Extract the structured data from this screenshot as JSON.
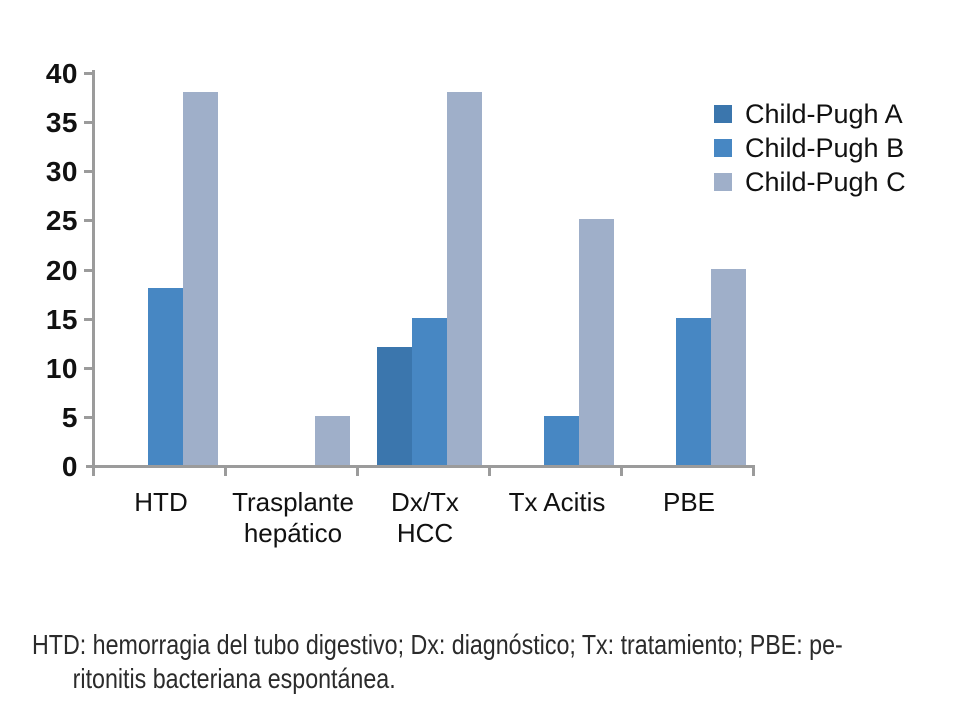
{
  "chart_data": {
    "type": "bar",
    "title": "",
    "xlabel": "",
    "ylabel": "",
    "categories": [
      "HTD",
      "Trasplante hepático",
      "Dx/Tx HCC",
      "Tx Acitis",
      "PBE"
    ],
    "category_label_lines": [
      [
        "HTD"
      ],
      [
        "Trasplante",
        "hepático"
      ],
      [
        "Dx/Tx",
        "HCC"
      ],
      [
        "Tx Acitis"
      ],
      [
        "PBE"
      ]
    ],
    "series": [
      {
        "name": "Child-Pugh A",
        "color": "#3b76ad",
        "values": [
          null,
          null,
          12,
          null,
          null
        ]
      },
      {
        "name": "Child-Pugh B",
        "color": "#4787c3",
        "values": [
          18,
          null,
          15,
          5,
          15
        ]
      },
      {
        "name": "Child-Pugh C",
        "color": "#9fafc9",
        "values": [
          38,
          5,
          38,
          25,
          20
        ]
      }
    ],
    "ylim": [
      0,
      40
    ],
    "yticks": [
      0,
      5,
      10,
      15,
      20,
      25,
      30,
      35,
      40
    ],
    "grid": false,
    "legend_position": "top-right",
    "axis_color": "#9b9b9b",
    "text_color": "#1a1a1a"
  },
  "legend": {
    "items": [
      "Child-Pugh A",
      "Child-Pugh B",
      "Child-Pugh C"
    ]
  },
  "footnote": {
    "line1": "HTD: hemorragia del tubo digestivo; Dx: diagnóstico; Tx: tratamiento; PBE: pe-",
    "line2": "ritonitis bacteriana espontánea."
  }
}
